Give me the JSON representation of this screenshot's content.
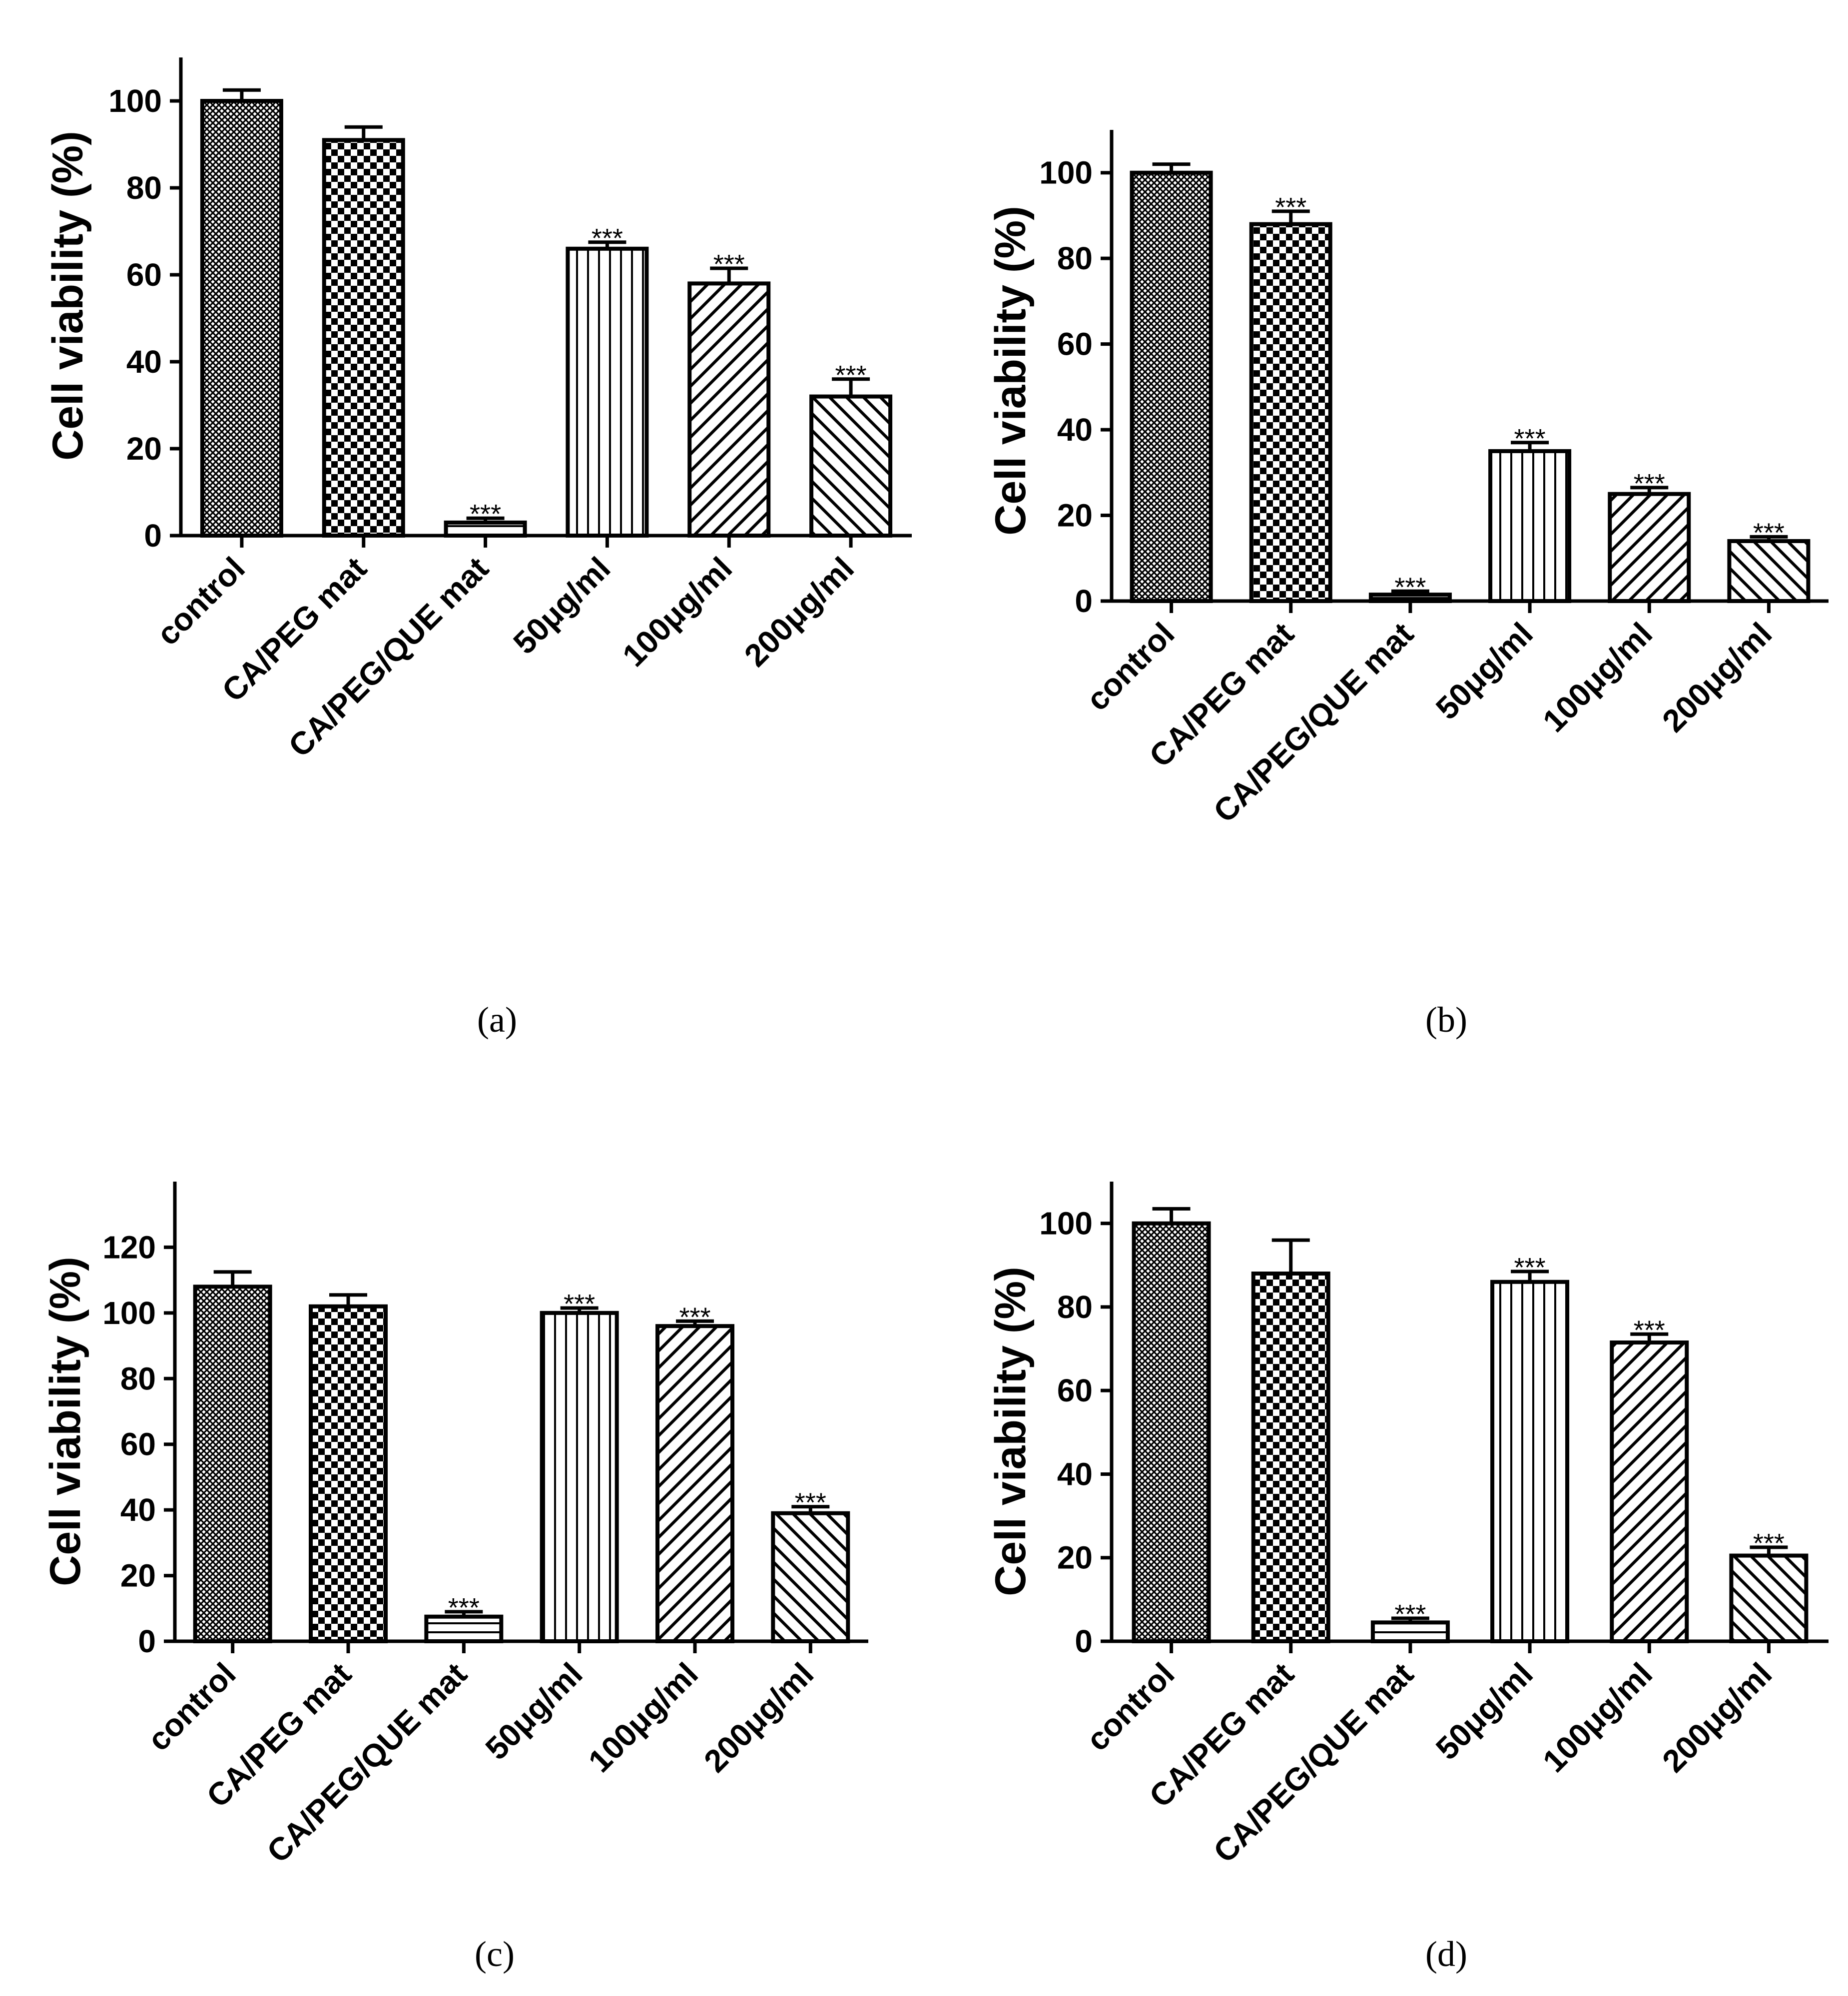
{
  "chart_data": [
    {
      "type": "bar",
      "panel_label": "(a)",
      "ylabel": "Cell viability (%)",
      "xlabel": "",
      "title": "",
      "ylim": [
        0,
        110
      ],
      "yticks": [
        0,
        20,
        40,
        60,
        80,
        100
      ],
      "categories": [
        "control",
        "CA/PEG mat",
        "CA/PEG/QUE mat",
        "50μg/ml",
        "100μg/ml",
        "200μg/ml"
      ],
      "values": [
        100,
        91,
        3,
        66,
        58,
        32
      ],
      "errors": [
        2.5,
        3,
        1,
        1.5,
        3.5,
        4
      ],
      "significance": [
        "",
        "",
        "***",
        "***",
        "***",
        "***"
      ],
      "patterns": [
        "crosshatch",
        "checker",
        "hlines",
        "vlines",
        "diag-up",
        "diag-down"
      ]
    },
    {
      "type": "bar",
      "panel_label": "(b)",
      "ylabel": "Cell viability (%)",
      "xlabel": "",
      "title": "",
      "ylim": [
        0,
        110
      ],
      "yticks": [
        0,
        20,
        40,
        60,
        80,
        100
      ],
      "categories": [
        "control",
        "CA/PEG mat",
        "CA/PEG/QUE mat",
        "50μg/ml",
        "100μg/ml",
        "200μg/ml"
      ],
      "values": [
        100,
        88,
        1.5,
        35,
        25,
        14
      ],
      "errors": [
        2,
        3,
        0.8,
        2,
        1.5,
        1
      ],
      "significance": [
        "",
        "***",
        "***",
        "***",
        "***",
        "***"
      ],
      "patterns": [
        "crosshatch",
        "checker",
        "hlines",
        "vlines",
        "diag-up",
        "diag-down"
      ]
    },
    {
      "type": "bar",
      "panel_label": "(c)",
      "ylabel": "Cell viability (%)",
      "xlabel": "",
      "title": "",
      "ylim": [
        0,
        140
      ],
      "yticks": [
        0,
        20,
        40,
        60,
        80,
        100,
        120
      ],
      "categories": [
        "control",
        "CA/PEG mat",
        "CA/PEG/QUE mat",
        "50μg/ml",
        "100μg/ml",
        "200μg/ml"
      ],
      "values": [
        108,
        102,
        7.5,
        100,
        96,
        39
      ],
      "errors": [
        4.5,
        3.5,
        1.5,
        1.5,
        1.5,
        2
      ],
      "significance": [
        "",
        "",
        "***",
        "***",
        "***",
        "***"
      ],
      "patterns": [
        "crosshatch",
        "checker",
        "hlines",
        "vlines",
        "diag-up",
        "diag-down"
      ]
    },
    {
      "type": "bar",
      "panel_label": "(d)",
      "ylabel": "Cell viability (%)",
      "xlabel": "",
      "title": "",
      "ylim": [
        0,
        110
      ],
      "yticks": [
        0,
        20,
        40,
        60,
        80,
        100
      ],
      "categories": [
        "control",
        "CA/PEG mat",
        "CA/PEG/QUE mat",
        "50μg/ml",
        "100μg/ml",
        "200μg/ml"
      ],
      "values": [
        100,
        88,
        4.5,
        86,
        71.5,
        20.5
      ],
      "errors": [
        3.5,
        8,
        1,
        2.5,
        2,
        2
      ],
      "significance": [
        "",
        "",
        "***",
        "***",
        "***",
        "***"
      ],
      "patterns": [
        "crosshatch",
        "checker",
        "hlines",
        "vlines",
        "diag-up",
        "diag-down"
      ]
    }
  ],
  "colors": {
    "ink": "#000000",
    "background": "#ffffff"
  }
}
